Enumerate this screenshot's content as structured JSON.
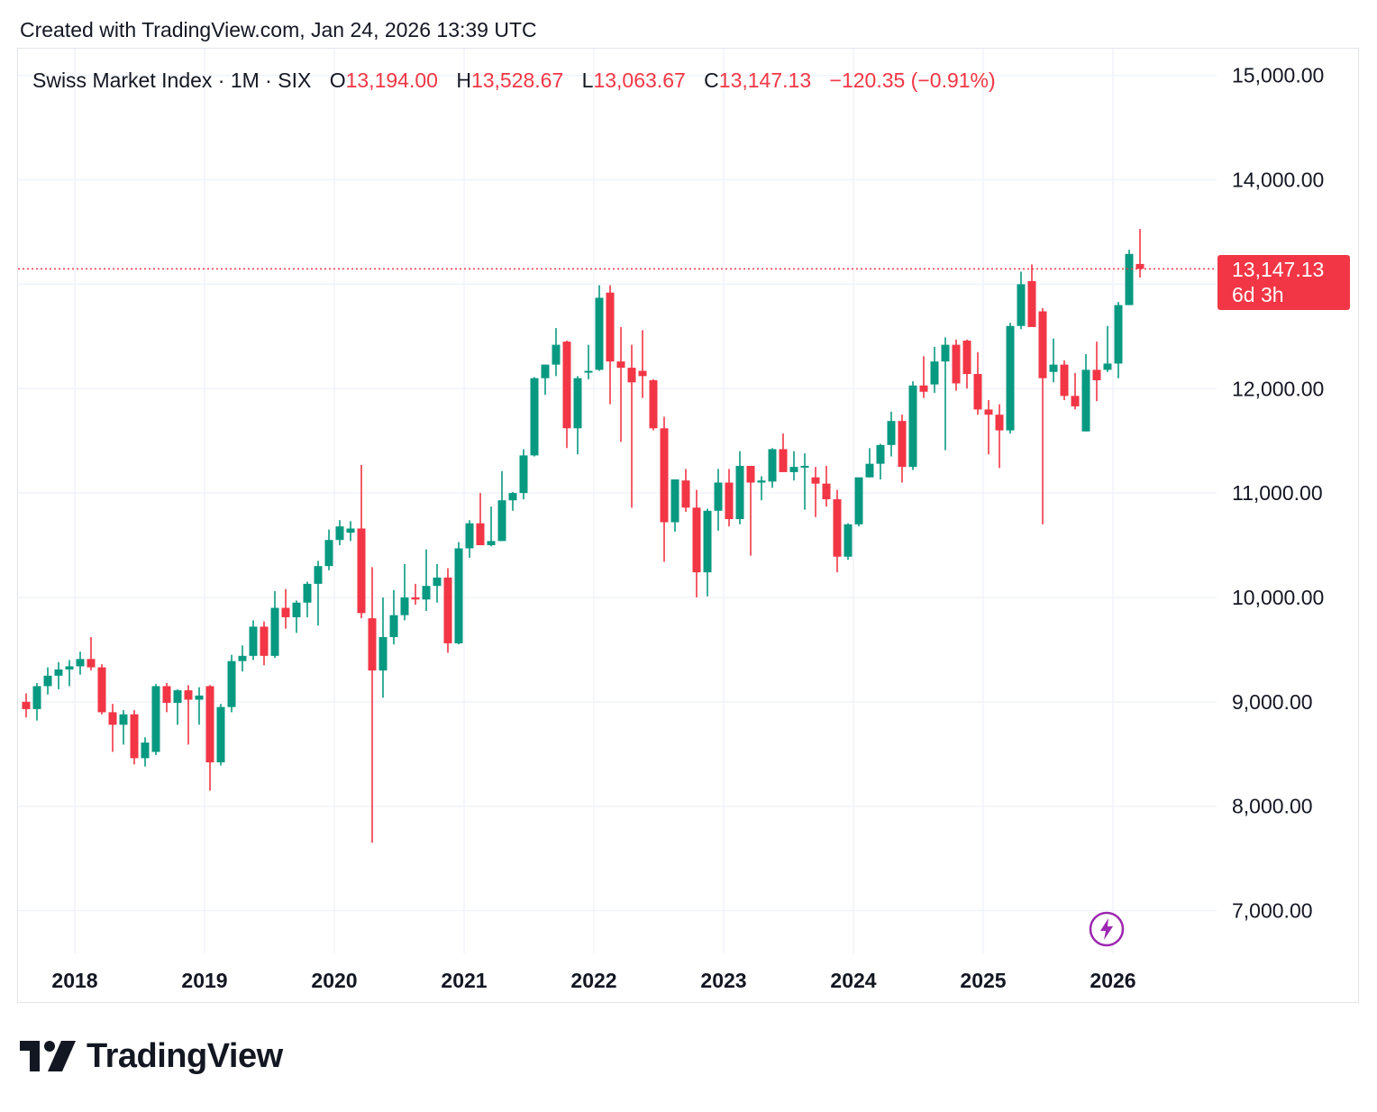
{
  "header": {
    "caption": "Created with TradingView.com, Jan 24, 2026 13:39 UTC"
  },
  "legend": {
    "symbol": "Swiss Market Index · 1M · SIX",
    "o_label": "O",
    "o_value": "13,194.00",
    "h_label": "H",
    "h_value": "13,528.67",
    "l_label": "L",
    "l_value": "13,063.67",
    "c_label": "C",
    "c_value": "13,147.13",
    "change": "−120.35 (−0.91%)"
  },
  "price_tag": {
    "price": "13,147.13",
    "countdown": "6d 3h"
  },
  "brand": {
    "name": "TradingView",
    "icon": "tradingview-logo-icon"
  },
  "icons": {
    "bolt": "lightning-bolt-icon"
  },
  "colors": {
    "up": "#089981",
    "down": "#f23645",
    "grid": "#f0f3fa",
    "price_line": "#f23645",
    "accent": "#9c27b0"
  },
  "chart_data": {
    "type": "candlestick",
    "title": "Swiss Market Index · 1M · SIX",
    "interval": "1M",
    "ylim": [
      6600,
      15250
    ],
    "yticks": [
      7000,
      8000,
      9000,
      10000,
      11000,
      12000,
      13000,
      14000,
      15000
    ],
    "ytick_labels": [
      "7,000.00",
      "8,000.00",
      "9,000.00",
      "10,000.00",
      "11,000.00",
      "12,000.00",
      "13,000.00",
      "14,000.00",
      "15,000.00"
    ],
    "xtick_labels": [
      "2018",
      "2019",
      "2020",
      "2021",
      "2022",
      "2023",
      "2024",
      "2025",
      "2026"
    ],
    "start": "2017-08",
    "last_price": 13147.13,
    "candles": [
      {
        "o": 9000,
        "h": 9080,
        "l": 8850,
        "c": 8930
      },
      {
        "o": 8930,
        "h": 9180,
        "l": 8820,
        "c": 9150
      },
      {
        "o": 9150,
        "h": 9330,
        "l": 9070,
        "c": 9250
      },
      {
        "o": 9250,
        "h": 9380,
        "l": 9120,
        "c": 9310
      },
      {
        "o": 9310,
        "h": 9400,
        "l": 9150,
        "c": 9340
      },
      {
        "o": 9340,
        "h": 9480,
        "l": 9260,
        "c": 9410
      },
      {
        "o": 9410,
        "h": 9620,
        "l": 9300,
        "c": 9330
      },
      {
        "o": 9330,
        "h": 9360,
        "l": 8880,
        "c": 8900
      },
      {
        "o": 8900,
        "h": 8980,
        "l": 8520,
        "c": 8780
      },
      {
        "o": 8780,
        "h": 8920,
        "l": 8590,
        "c": 8880
      },
      {
        "o": 8880,
        "h": 8920,
        "l": 8400,
        "c": 8460
      },
      {
        "o": 8460,
        "h": 8660,
        "l": 8380,
        "c": 8610
      },
      {
        "o": 8520,
        "h": 9170,
        "l": 8490,
        "c": 9150
      },
      {
        "o": 9150,
        "h": 9180,
        "l": 8900,
        "c": 8990
      },
      {
        "o": 8990,
        "h": 9120,
        "l": 8780,
        "c": 9110
      },
      {
        "o": 9110,
        "h": 9160,
        "l": 8590,
        "c": 9020
      },
      {
        "o": 9020,
        "h": 9140,
        "l": 8780,
        "c": 9060
      },
      {
        "o": 9150,
        "h": 9160,
        "l": 8150,
        "c": 8420
      },
      {
        "o": 8420,
        "h": 8980,
        "l": 8390,
        "c": 8950
      },
      {
        "o": 8950,
        "h": 9450,
        "l": 8900,
        "c": 9390
      },
      {
        "o": 9390,
        "h": 9540,
        "l": 9290,
        "c": 9440
      },
      {
        "o": 9440,
        "h": 9780,
        "l": 9400,
        "c": 9720
      },
      {
        "o": 9720,
        "h": 9770,
        "l": 9350,
        "c": 9440
      },
      {
        "o": 9440,
        "h": 10060,
        "l": 9420,
        "c": 9900
      },
      {
        "o": 9900,
        "h": 10080,
        "l": 9700,
        "c": 9810
      },
      {
        "o": 9810,
        "h": 9970,
        "l": 9660,
        "c": 9950
      },
      {
        "o": 9950,
        "h": 10150,
        "l": 9810,
        "c": 10130
      },
      {
        "o": 10130,
        "h": 10350,
        "l": 9730,
        "c": 10300
      },
      {
        "o": 10300,
        "h": 10650,
        "l": 10260,
        "c": 10550
      },
      {
        "o": 10550,
        "h": 10740,
        "l": 10500,
        "c": 10680
      },
      {
        "o": 10620,
        "h": 10730,
        "l": 10540,
        "c": 10660
      },
      {
        "o": 10660,
        "h": 11270,
        "l": 9800,
        "c": 9850
      },
      {
        "o": 9800,
        "h": 10290,
        "l": 7650,
        "c": 9300
      },
      {
        "o": 9300,
        "h": 10000,
        "l": 9040,
        "c": 9620
      },
      {
        "o": 9620,
        "h": 10070,
        "l": 9550,
        "c": 9830
      },
      {
        "o": 9830,
        "h": 10320,
        "l": 9780,
        "c": 10000
      },
      {
        "o": 10000,
        "h": 10130,
        "l": 9930,
        "c": 9980
      },
      {
        "o": 9980,
        "h": 10460,
        "l": 9870,
        "c": 10110
      },
      {
        "o": 10110,
        "h": 10320,
        "l": 9950,
        "c": 10190
      },
      {
        "o": 10190,
        "h": 10280,
        "l": 9470,
        "c": 9560
      },
      {
        "o": 9560,
        "h": 10530,
        "l": 9550,
        "c": 10470
      },
      {
        "o": 10470,
        "h": 10740,
        "l": 10380,
        "c": 10710
      },
      {
        "o": 10710,
        "h": 11000,
        "l": 10580,
        "c": 10500
      },
      {
        "o": 10500,
        "h": 10870,
        "l": 10490,
        "c": 10540
      },
      {
        "o": 10540,
        "h": 11210,
        "l": 10540,
        "c": 10930
      },
      {
        "o": 10930,
        "h": 11010,
        "l": 10830,
        "c": 11000
      },
      {
        "o": 11000,
        "h": 11420,
        "l": 10940,
        "c": 11360
      },
      {
        "o": 11360,
        "h": 12110,
        "l": 11350,
        "c": 12100
      },
      {
        "o": 12100,
        "h": 12230,
        "l": 11940,
        "c": 12230
      },
      {
        "o": 12230,
        "h": 12580,
        "l": 12120,
        "c": 12420
      },
      {
        "o": 12450,
        "h": 12460,
        "l": 11430,
        "c": 11620
      },
      {
        "o": 11620,
        "h": 12120,
        "l": 11370,
        "c": 12100
      },
      {
        "o": 12170,
        "h": 12420,
        "l": 12090,
        "c": 12170
      },
      {
        "o": 12180,
        "h": 12990,
        "l": 12170,
        "c": 12870
      },
      {
        "o": 12920,
        "h": 12990,
        "l": 11850,
        "c": 12260
      },
      {
        "o": 12260,
        "h": 12590,
        "l": 11490,
        "c": 12200
      },
      {
        "o": 12200,
        "h": 12420,
        "l": 10860,
        "c": 12060
      },
      {
        "o": 12170,
        "h": 12560,
        "l": 11910,
        "c": 12120
      },
      {
        "o": 12080,
        "h": 12090,
        "l": 11600,
        "c": 11620
      },
      {
        "o": 11620,
        "h": 11730,
        "l": 10340,
        "c": 10720
      },
      {
        "o": 10720,
        "h": 11130,
        "l": 10630,
        "c": 11130
      },
      {
        "o": 11120,
        "h": 11230,
        "l": 10820,
        "c": 10860
      },
      {
        "o": 10860,
        "h": 11030,
        "l": 10000,
        "c": 10240
      },
      {
        "o": 10240,
        "h": 10850,
        "l": 10010,
        "c": 10830
      },
      {
        "o": 10830,
        "h": 11230,
        "l": 10640,
        "c": 11100
      },
      {
        "o": 11100,
        "h": 11230,
        "l": 10680,
        "c": 10750
      },
      {
        "o": 10750,
        "h": 11400,
        "l": 10700,
        "c": 11260
      },
      {
        "o": 11260,
        "h": 11260,
        "l": 10400,
        "c": 11100
      },
      {
        "o": 11100,
        "h": 11160,
        "l": 10930,
        "c": 11120
      },
      {
        "o": 11110,
        "h": 11430,
        "l": 11050,
        "c": 11420
      },
      {
        "o": 11420,
        "h": 11570,
        "l": 11250,
        "c": 11200
      },
      {
        "o": 11200,
        "h": 11400,
        "l": 11120,
        "c": 11250
      },
      {
        "o": 11250,
        "h": 11380,
        "l": 10840,
        "c": 11260
      },
      {
        "o": 11150,
        "h": 11250,
        "l": 10770,
        "c": 11090
      },
      {
        "o": 11090,
        "h": 11260,
        "l": 10870,
        "c": 10940
      },
      {
        "o": 10940,
        "h": 11030,
        "l": 10240,
        "c": 10390
      },
      {
        "o": 10390,
        "h": 10710,
        "l": 10360,
        "c": 10700
      },
      {
        "o": 10700,
        "h": 11140,
        "l": 10680,
        "c": 11150
      },
      {
        "o": 11150,
        "h": 11430,
        "l": 11150,
        "c": 11280
      },
      {
        "o": 11280,
        "h": 11470,
        "l": 11130,
        "c": 11460
      },
      {
        "o": 11460,
        "h": 11780,
        "l": 11350,
        "c": 11690
      },
      {
        "o": 11690,
        "h": 11750,
        "l": 11100,
        "c": 11250
      },
      {
        "o": 11250,
        "h": 12070,
        "l": 11220,
        "c": 12030
      },
      {
        "o": 12030,
        "h": 12310,
        "l": 11910,
        "c": 11970
      },
      {
        "o": 12040,
        "h": 12400,
        "l": 11960,
        "c": 12260
      },
      {
        "o": 12260,
        "h": 12490,
        "l": 11410,
        "c": 12420
      },
      {
        "o": 12420,
        "h": 12470,
        "l": 11980,
        "c": 12050
      },
      {
        "o": 12460,
        "h": 12470,
        "l": 12000,
        "c": 12140
      },
      {
        "o": 12140,
        "h": 12350,
        "l": 11750,
        "c": 11800
      },
      {
        "o": 11800,
        "h": 11890,
        "l": 11370,
        "c": 11750
      },
      {
        "o": 11750,
        "h": 11850,
        "l": 11240,
        "c": 11600
      },
      {
        "o": 11600,
        "h": 12630,
        "l": 11570,
        "c": 12600
      },
      {
        "o": 12600,
        "h": 13120,
        "l": 12570,
        "c": 13000
      },
      {
        "o": 13030,
        "h": 13190,
        "l": 12620,
        "c": 12590
      },
      {
        "o": 12740,
        "h": 12770,
        "l": 10700,
        "c": 12100
      },
      {
        "o": 12160,
        "h": 12480,
        "l": 12060,
        "c": 12230
      },
      {
        "o": 12230,
        "h": 12270,
        "l": 11890,
        "c": 11930
      },
      {
        "o": 11930,
        "h": 12150,
        "l": 11800,
        "c": 11830
      },
      {
        "o": 11590,
        "h": 12330,
        "l": 11590,
        "c": 12180
      },
      {
        "o": 12180,
        "h": 12450,
        "l": 11880,
        "c": 12080
      },
      {
        "o": 12180,
        "h": 12600,
        "l": 12160,
        "c": 12240
      },
      {
        "o": 12240,
        "h": 12830,
        "l": 12100,
        "c": 12800
      },
      {
        "o": 12800,
        "h": 13330,
        "l": 12800,
        "c": 13290
      },
      {
        "o": 13194,
        "h": 13528.67,
        "l": 13063.67,
        "c": 13147.13
      }
    ]
  }
}
